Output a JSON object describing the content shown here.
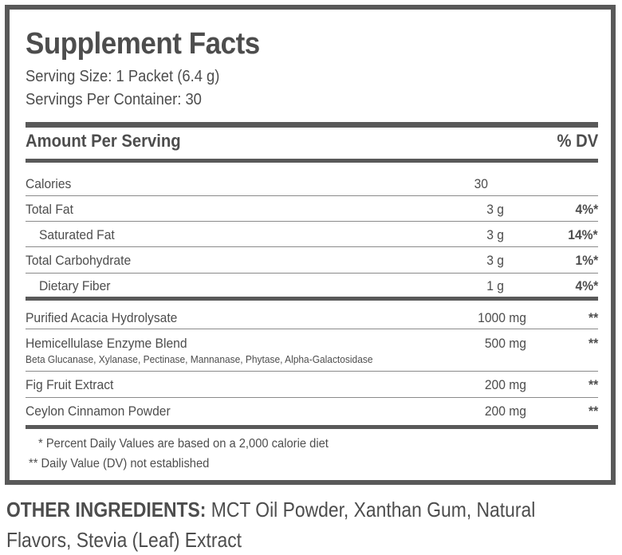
{
  "panel": {
    "title": "Supplement Facts",
    "serving_size": "Serving Size: 1 Packet (6.4 g)",
    "servings_per_container": "Servings Per Container: 30",
    "header": {
      "amount_label": "Amount Per Serving",
      "dv_label": "% DV"
    },
    "nutrients": [
      {
        "name": "Calories",
        "amount": "30",
        "dv": ""
      },
      {
        "name": "Total Fat",
        "amount": "3 g",
        "dv": "4%*"
      },
      {
        "name": "Saturated Fat",
        "amount": "3 g",
        "dv": "14%*"
      },
      {
        "name": "Total Carbohydrate",
        "amount": "3 g",
        "dv": "1%*"
      },
      {
        "name": "Dietary Fiber",
        "amount": "1 g",
        "dv": "4%*"
      }
    ],
    "ingredients": [
      {
        "name": "Purified Acacia Hydrolysate",
        "amount": "1000 mg",
        "dv": "**"
      },
      {
        "name": "Hemicellulase Enzyme Blend",
        "sub": "Beta Glucanase, Xylanase, Pectinase, Mannanase, Phytase, Alpha-Galactosidase",
        "amount": "500 mg",
        "dv": "**"
      },
      {
        "name": "Fig Fruit Extract",
        "amount": "200 mg",
        "dv": "**"
      },
      {
        "name": "Ceylon Cinnamon Powder",
        "amount": "200 mg",
        "dv": "**"
      }
    ],
    "footnotes": [
      "* Percent Daily Values are based on a 2,000 calorie diet",
      "** Daily Value (DV) not established"
    ]
  },
  "other_ingredients": {
    "label": "OTHER INGREDIENTS:",
    "text": " MCT Oil Powder, Xanthan Gum, Natural Flavors, Stevia (Leaf) Extract"
  },
  "colors": {
    "border": "#595959",
    "text": "#4d4d4d"
  }
}
